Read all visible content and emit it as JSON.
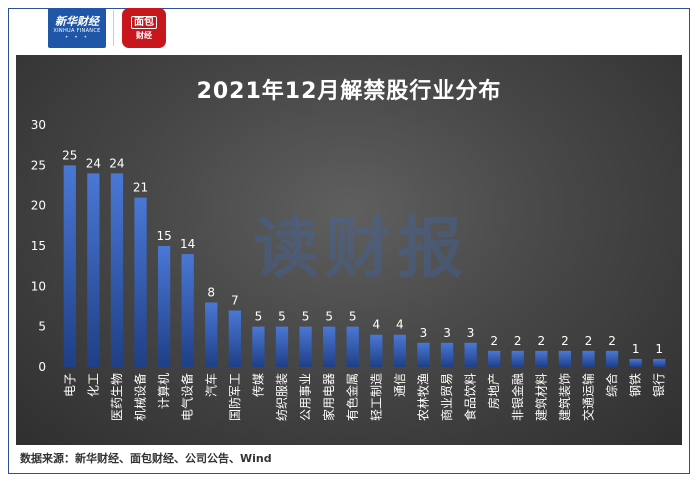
{
  "header": {
    "xinhua_logo_main": "新华财经",
    "xinhua_logo_sub": "XINHUA FINANCE",
    "mianbao_logo_top": "面包",
    "mianbao_logo_bottom": "财经"
  },
  "watermark": "读财报",
  "source": "数据来源：新华财经、面包财经、公司公告、Wind",
  "colors": {
    "bar_top": "#4a78d6",
    "bar_bottom": "#1f3f86",
    "panel_bg": "#474747",
    "text": "#ffffff"
  },
  "chart_data": {
    "type": "bar",
    "title": "2021年12月解禁股行业分布",
    "xlabel": "",
    "ylabel": "",
    "ylim": [
      0,
      30
    ],
    "yticks": [
      0,
      5,
      10,
      15,
      20,
      25,
      30
    ],
    "grid": false,
    "legend": "none",
    "categories": [
      "电子",
      "化工",
      "医药生物",
      "机械设备",
      "计算机",
      "电气设备",
      "汽车",
      "国防军工",
      "传媒",
      "纺织服装",
      "公用事业",
      "家用电器",
      "有色金属",
      "轻工制造",
      "通信",
      "农林牧渔",
      "商业贸易",
      "食品饮料",
      "房地产",
      "非银金融",
      "建筑材料",
      "建筑装饰",
      "交通运输",
      "综合",
      "钢铁",
      "银行"
    ],
    "values": [
      25,
      24,
      24,
      21,
      15,
      14,
      8,
      7,
      5,
      5,
      5,
      5,
      5,
      4,
      4,
      3,
      3,
      3,
      2,
      2,
      2,
      2,
      2,
      2,
      1,
      1
    ]
  }
}
